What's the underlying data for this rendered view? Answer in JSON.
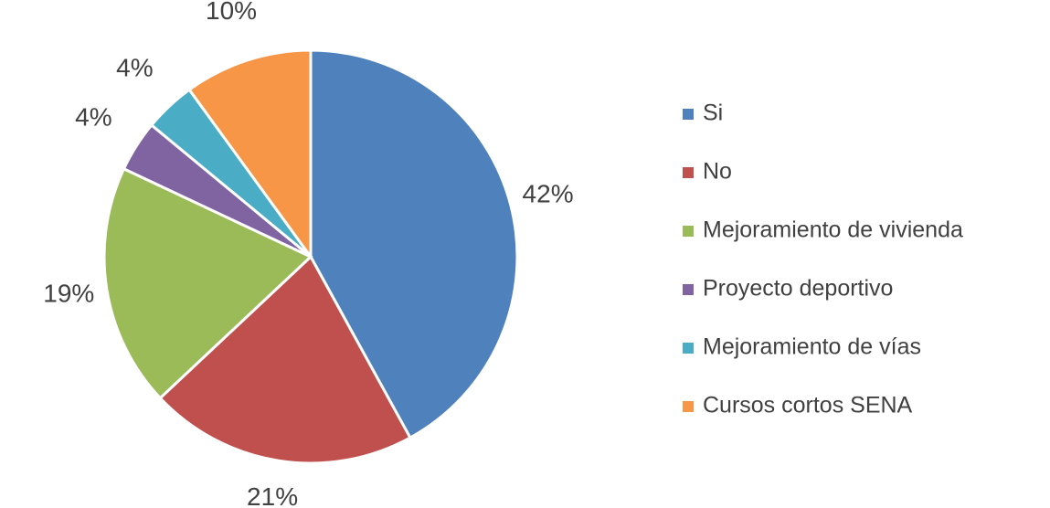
{
  "chart_data": {
    "type": "pie",
    "categories": [
      "Si",
      "No",
      "Mejoramiento de vivienda",
      "Proyecto deportivo",
      "Mejoramiento de vías",
      "Cursos cortos SENA"
    ],
    "values": [
      42,
      21,
      19,
      4,
      4,
      10
    ],
    "value_labels": [
      "42%",
      "21%",
      "19%",
      "4%",
      "4%",
      "10%"
    ],
    "colors": [
      "#4f81bd",
      "#c0504d",
      "#9bbb59",
      "#8064a2",
      "#4bacc6",
      "#f79646"
    ],
    "legend": "right"
  }
}
